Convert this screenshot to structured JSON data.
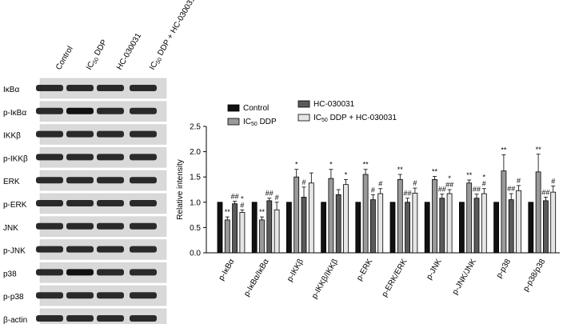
{
  "blot": {
    "lane_labels": [
      "Control",
      "IC50 DDP",
      "HC-030031",
      "IC50 DDP + HC-030031"
    ],
    "rows": [
      "IκBα",
      "p-IκBα",
      "IKKβ",
      "p-IKKβ",
      "ERK",
      "p-ERK",
      "JNK",
      "p-JNK",
      "p38",
      "p-p38",
      "β-actin"
    ]
  },
  "chart_data": {
    "type": "bar",
    "ylabel": "Relative intensity",
    "ylim": [
      0,
      2.5
    ],
    "yticks": [
      "0.0",
      "0.5",
      "1.0",
      "1.5",
      "2.0",
      "2.5"
    ],
    "categories": [
      "p-IκBα",
      "p-IκBα/IκBα",
      "p-IKKβ",
      "p-IKKβ/IKKβ",
      "p-ERK",
      "p-ERK/ERK",
      "p-JNK",
      "p-JNK/JNK",
      "p-p38",
      "p-p38/p38"
    ],
    "legend": [
      "Control",
      "IC50 DDP",
      "HC-030031",
      "IC50 DDP + HC-030031"
    ],
    "colors": [
      "#111111",
      "#9a9a9a",
      "#5a5a5a",
      "#e6e6e6"
    ],
    "series": [
      {
        "name": "Control",
        "values": [
          1,
          1,
          1,
          1,
          1,
          1,
          1,
          1,
          1,
          1
        ],
        "errors": [
          0,
          0,
          0,
          0,
          0,
          0,
          0,
          0,
          0,
          0
        ]
      },
      {
        "name": "IC50 DDP",
        "values": [
          0.65,
          0.65,
          1.5,
          1.47,
          1.55,
          1.45,
          1.45,
          1.38,
          1.62,
          1.6
        ],
        "errors": [
          0.06,
          0.06,
          0.15,
          0.18,
          0.1,
          0.1,
          0.06,
          0.06,
          0.32,
          0.35
        ]
      },
      {
        "name": "HC-030031",
        "values": [
          0.97,
          1.03,
          1.1,
          1.15,
          1.05,
          1.0,
          1.08,
          1.08,
          1.05,
          1.03
        ],
        "errors": [
          0.05,
          0.05,
          0.2,
          0.1,
          0.1,
          0.08,
          0.08,
          0.08,
          0.12,
          0.07
        ]
      },
      {
        "name": "IC50 DDP + HC-030031",
        "values": [
          0.8,
          0.85,
          1.38,
          1.35,
          1.17,
          1.18,
          1.17,
          1.17,
          1.23,
          1.2
        ],
        "errors": [
          0.05,
          0.15,
          0.2,
          0.1,
          0.1,
          0.1,
          0.08,
          0.1,
          0.1,
          0.12
        ]
      }
    ],
    "significance": [
      {
        "category": 0,
        "series": 1,
        "text": "**"
      },
      {
        "category": 0,
        "series": 2,
        "text": "##"
      },
      {
        "category": 0,
        "series": 3,
        "text": "#"
      },
      {
        "category": 0,
        "series": 3,
        "text": "*"
      },
      {
        "category": 1,
        "series": 1,
        "text": "**"
      },
      {
        "category": 1,
        "series": 2,
        "text": "##"
      },
      {
        "category": 1,
        "series": 3,
        "text": "#"
      },
      {
        "category": 2,
        "series": 1,
        "text": "*"
      },
      {
        "category": 2,
        "series": 2,
        "text": "#"
      },
      {
        "category": 3,
        "series": 1,
        "text": "*"
      },
      {
        "category": 3,
        "series": 3,
        "text": "*"
      },
      {
        "category": 4,
        "series": 1,
        "text": "**"
      },
      {
        "category": 4,
        "series": 2,
        "text": "#"
      },
      {
        "category": 4,
        "series": 3,
        "text": "#"
      },
      {
        "category": 5,
        "series": 1,
        "text": "**"
      },
      {
        "category": 5,
        "series": 2,
        "text": "##"
      },
      {
        "category": 5,
        "series": 3,
        "text": "#"
      },
      {
        "category": 6,
        "series": 1,
        "text": "**"
      },
      {
        "category": 6,
        "series": 2,
        "text": "##"
      },
      {
        "category": 6,
        "series": 3,
        "text": "##"
      },
      {
        "category": 6,
        "series": 3,
        "text": "*"
      },
      {
        "category": 7,
        "series": 1,
        "text": "**"
      },
      {
        "category": 7,
        "series": 2,
        "text": "##"
      },
      {
        "category": 7,
        "series": 3,
        "text": "#"
      },
      {
        "category": 7,
        "series": 3,
        "text": "*"
      },
      {
        "category": 8,
        "series": 1,
        "text": "**"
      },
      {
        "category": 8,
        "series": 2,
        "text": "##"
      },
      {
        "category": 8,
        "series": 3,
        "text": "#"
      },
      {
        "category": 9,
        "series": 1,
        "text": "**"
      },
      {
        "category": 9,
        "series": 2,
        "text": "##"
      },
      {
        "category": 9,
        "series": 3,
        "text": "#"
      }
    ]
  }
}
